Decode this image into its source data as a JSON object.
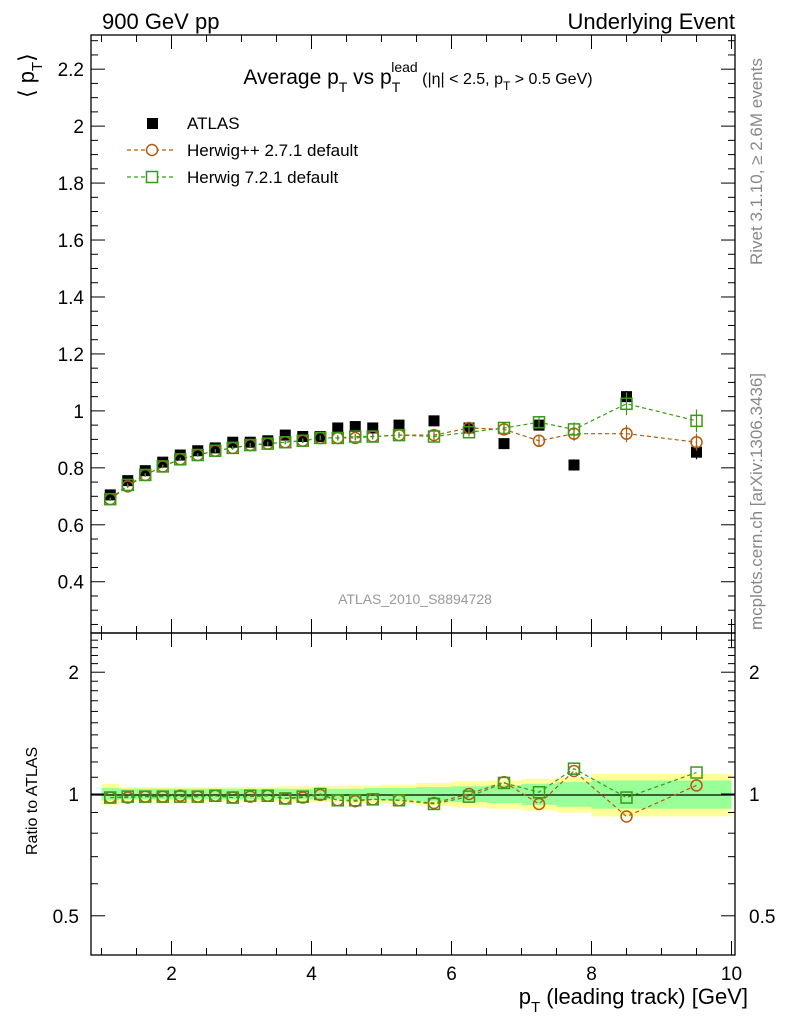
{
  "header": {
    "left": "900 GeV pp",
    "right": "Underlying Event"
  },
  "side_labels": {
    "rivet": "Rivet 3.1.10, ≥ 2.6M events",
    "mcplots": "mcplots.cern.ch [arXiv:1306.3436]"
  },
  "analysis_id": "ATLAS_2010_S8894728",
  "colors": {
    "atlas": "#000000",
    "herwigpp": "#b05c0f",
    "herwig7": "#3a9a17",
    "band_inner": "#99ff99",
    "band_outer": "#ffff99"
  },
  "chart_data": [
    {
      "type": "scatter",
      "panel": "main",
      "title": "Average p_T vs p_T^lead (|η| < 2.5, p_T > 0.5 GeV)",
      "title_parts": {
        "main": "Average p",
        "sub1": "T",
        "vs": " vs p",
        "sub2": "T",
        "sup2": "lead",
        "cond_open": " (|η| < 2.5, p",
        "cond_sub": "T",
        "cond_close": " > 0.5 GeV)"
      },
      "ylabel": "⟨ p_T ⟩",
      "ylabel_parts": {
        "open": "⟨ p",
        "sub": "T",
        "close": "⟩"
      },
      "xlabel": "",
      "xlim": [
        0.85,
        10.05
      ],
      "ylim": [
        0.22,
        2.32
      ],
      "yticks": [
        0.4,
        0.6,
        0.8,
        1.0,
        1.2,
        1.4,
        1.6,
        1.8,
        2.0,
        2.2
      ],
      "ytick_labels": [
        "0.4",
        "0.6",
        "0.8",
        "1",
        "1.2",
        "1.4",
        "1.6",
        "1.8",
        "2",
        "2.2"
      ],
      "legend_position": "top-left",
      "x": [
        1.125,
        1.375,
        1.625,
        1.875,
        2.125,
        2.375,
        2.625,
        2.875,
        3.125,
        3.375,
        3.625,
        3.875,
        4.125,
        4.375,
        4.625,
        4.875,
        5.25,
        5.75,
        6.25,
        6.75,
        7.25,
        7.75,
        8.5,
        9.5
      ],
      "series": [
        {
          "name": "ATLAS",
          "marker": "filled-square",
          "values": [
            0.705,
            0.755,
            0.79,
            0.82,
            0.845,
            0.86,
            0.87,
            0.89,
            0.89,
            0.895,
            0.915,
            0.91,
            0.91,
            0.94,
            0.945,
            0.94,
            0.95,
            0.965,
            0.94,
            0.885,
            0.95,
            0.81,
            1.05,
            0.855
          ],
          "errors": [
            0.005,
            0.005,
            0.005,
            0.005,
            0.005,
            0.005,
            0.005,
            0.005,
            0.006,
            0.006,
            0.006,
            0.007,
            0.007,
            0.008,
            0.008,
            0.009,
            0.01,
            0.012,
            0.014,
            0.016,
            0.018,
            0.02,
            0.02,
            0.025
          ]
        },
        {
          "name": "Herwig++ 2.7.1 default",
          "marker": "open-circle",
          "line": "dashed",
          "values": [
            0.69,
            0.735,
            0.775,
            0.805,
            0.83,
            0.845,
            0.86,
            0.87,
            0.88,
            0.885,
            0.89,
            0.895,
            0.905,
            0.905,
            0.905,
            0.91,
            0.915,
            0.915,
            0.94,
            0.935,
            0.895,
            0.92,
            0.92,
            0.89
          ],
          "errors": [
            0.006,
            0.006,
            0.006,
            0.006,
            0.006,
            0.006,
            0.006,
            0.006,
            0.007,
            0.007,
            0.007,
            0.008,
            0.008,
            0.009,
            0.009,
            0.01,
            0.01,
            0.012,
            0.015,
            0.017,
            0.02,
            0.025,
            0.03,
            0.03
          ]
        },
        {
          "name": "Herwig 7.2.1 default",
          "marker": "open-square",
          "line": "dashed",
          "values": [
            0.69,
            0.74,
            0.775,
            0.805,
            0.83,
            0.845,
            0.86,
            0.87,
            0.88,
            0.885,
            0.89,
            0.895,
            0.905,
            0.905,
            0.91,
            0.91,
            0.915,
            0.91,
            0.925,
            0.94,
            0.96,
            0.935,
            1.025,
            0.965
          ],
          "errors": [
            0.006,
            0.006,
            0.006,
            0.006,
            0.006,
            0.006,
            0.006,
            0.006,
            0.007,
            0.007,
            0.007,
            0.008,
            0.008,
            0.009,
            0.009,
            0.01,
            0.01,
            0.012,
            0.015,
            0.017,
            0.02,
            0.025,
            0.04,
            0.04
          ]
        }
      ]
    },
    {
      "type": "scatter",
      "panel": "ratio",
      "ylabel": "Ratio to ATLAS",
      "xlabel": "p_T (leading track) [GeV]",
      "xlabel_parts": {
        "main": "p",
        "sub": "T",
        "rest": " (leading track) [GeV]"
      },
      "xlim": [
        0.85,
        10.05
      ],
      "xticks": [
        2,
        4,
        6,
        8,
        10
      ],
      "xtick_labels": [
        "2",
        "4",
        "6",
        "8",
        "10"
      ],
      "ylim": [
        0.4,
        2.5
      ],
      "log_y": true,
      "yticks": [
        0.5,
        1,
        2
      ],
      "ytick_labels": [
        "0.5",
        "1",
        "2"
      ],
      "x": [
        1.125,
        1.375,
        1.625,
        1.875,
        2.125,
        2.375,
        2.625,
        2.875,
        3.125,
        3.375,
        3.625,
        3.875,
        4.125,
        4.375,
        4.625,
        4.875,
        5.25,
        5.75,
        6.25,
        6.75,
        7.25,
        7.75,
        8.5,
        9.5
      ],
      "bin_edges": [
        1.0,
        1.25,
        1.5,
        1.75,
        2.0,
        2.25,
        2.5,
        2.75,
        3.0,
        3.25,
        3.5,
        3.75,
        4.0,
        4.25,
        4.5,
        4.75,
        5.0,
        5.5,
        6.0,
        6.5,
        7.0,
        7.5,
        8.0,
        9.0,
        10.0
      ],
      "band_inner": [
        0.035,
        0.03,
        0.03,
        0.03,
        0.03,
        0.03,
        0.03,
        0.03,
        0.03,
        0.03,
        0.03,
        0.03,
        0.03,
        0.03,
        0.03,
        0.035,
        0.035,
        0.04,
        0.045,
        0.05,
        0.06,
        0.07,
        0.08,
        0.08
      ],
      "band_outer": [
        0.06,
        0.04,
        0.04,
        0.04,
        0.04,
        0.04,
        0.04,
        0.04,
        0.04,
        0.04,
        0.045,
        0.045,
        0.045,
        0.045,
        0.05,
        0.05,
        0.055,
        0.065,
        0.075,
        0.08,
        0.09,
        0.1,
        0.12,
        0.12
      ],
      "series": [
        {
          "name": "Herwig++ 2.7.1 default",
          "values": [
            0.98,
            0.98,
            0.985,
            0.985,
            0.99,
            0.985,
            0.99,
            0.98,
            0.985,
            0.99,
            0.975,
            0.98,
            0.995,
            0.965,
            0.96,
            0.97,
            0.965,
            0.95,
            1.0,
            1.07,
            0.945,
            1.14,
            0.88,
            1.05
          ]
        },
        {
          "name": "Herwig 7.2.1 default",
          "values": [
            0.98,
            0.985,
            0.985,
            0.985,
            0.985,
            0.985,
            0.99,
            0.98,
            0.99,
            0.99,
            0.975,
            0.985,
            1.0,
            0.965,
            0.965,
            0.97,
            0.965,
            0.945,
            0.985,
            1.065,
            1.01,
            1.155,
            0.98,
            1.13
          ]
        }
      ]
    }
  ]
}
